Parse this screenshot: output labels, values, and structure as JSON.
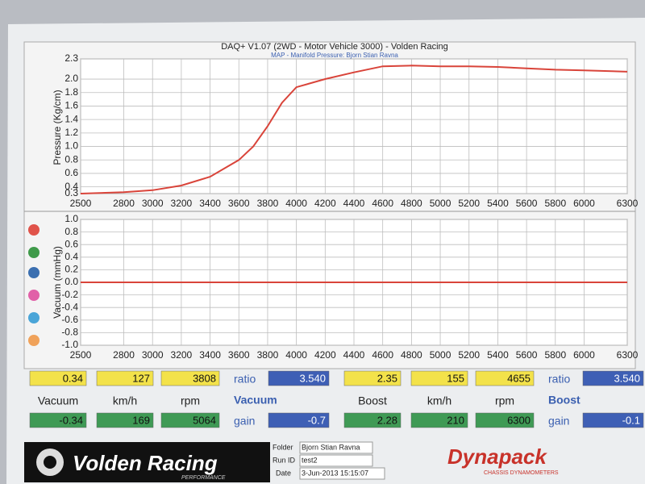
{
  "chart_data": [
    {
      "type": "line",
      "title": "DAQ+ V1.07 (2WD - Motor Vehicle 3000) - Volden Racing",
      "subtitle": "MAP - Manifold Pressure: Bjorn Stian Ravna",
      "y_label": "Pressure (Kg/cm)",
      "x": [
        2500,
        2800,
        3000,
        3200,
        3400,
        3600,
        3700,
        3800,
        3900,
        4000,
        4200,
        4400,
        4600,
        4800,
        5000,
        5200,
        5400,
        5600,
        5800,
        6000,
        6300
      ],
      "values": [
        0.3,
        0.32,
        0.35,
        0.42,
        0.55,
        0.8,
        1.0,
        1.3,
        1.65,
        1.88,
        2.0,
        2.1,
        2.19,
        2.2,
        2.19,
        2.19,
        2.18,
        2.16,
        2.14,
        2.13,
        2.11
      ],
      "color": "#d9443a",
      "xlim": [
        2500,
        6300
      ],
      "xticks": [
        2500,
        2800,
        3000,
        3200,
        3400,
        3600,
        3800,
        4000,
        4200,
        4400,
        4600,
        4800,
        5000,
        5200,
        5400,
        5600,
        5800,
        6000,
        6300
      ],
      "ylim": [
        0.3,
        2.3
      ],
      "yticks": [
        0.3,
        0.4,
        0.6,
        0.8,
        {
          "value": 1,
          "label": "1.0"
        },
        1.2,
        1.4,
        1.6,
        1.8,
        {
          "value": 2,
          "label": "2.0"
        },
        2.3
      ],
      "grid": true
    },
    {
      "type": "line",
      "y_label": "Vacuum (mmHg)",
      "x": [
        2500,
        6300
      ],
      "values": [
        0,
        0
      ],
      "color": "#d9443a",
      "xlim": [
        2500,
        6300
      ],
      "xticks": [
        2500,
        2800,
        3000,
        3200,
        3400,
        3600,
        3800,
        4000,
        4200,
        4400,
        4600,
        4800,
        5000,
        5200,
        5400,
        5600,
        5800,
        6000,
        6300
      ],
      "ylim": [
        -1,
        1
      ],
      "yticks": [
        {
          "value": -1,
          "label": "-1.0"
        },
        -0.8,
        -0.6,
        -0.4,
        -0.2,
        {
          "value": 0,
          "label": "0.0"
        },
        0.2,
        0.4,
        0.6,
        0.8,
        {
          "value": 1,
          "label": "1.0"
        }
      ],
      "grid": true
    }
  ],
  "readouts": [
    {
      "top": [
        "0.34",
        "127",
        "3808"
      ],
      "ratio_label": "ratio",
      "ratio": "3.540",
      "labels": [
        "Vacuum",
        "km/h",
        "rpm"
      ],
      "mode": "Vacuum",
      "bottom": [
        "-0.34",
        "169",
        "5064"
      ],
      "gain_label": "gain",
      "gain": "-0.7"
    },
    {
      "top": [
        "2.35",
        "155",
        "4655"
      ],
      "ratio_label": "ratio",
      "ratio": "3.540",
      "labels": [
        "Boost",
        "km/h",
        "rpm"
      ],
      "mode": "Boost",
      "bottom": [
        "2.28",
        "210",
        "6300"
      ],
      "gain_label": "gain",
      "gain": "-0.1"
    }
  ],
  "footer": {
    "logo": "Volden Racing",
    "logo_sub": "PERFORMANCE",
    "folder_label": "Folder",
    "folder": "Bjorn Stian Ravna",
    "run_label": "Run ID",
    "run": "test2",
    "date_label": "Date",
    "date": "3-Jun-2013 15:15:07",
    "brand": "Dynapack",
    "brand_sub": "CHASSIS DYNAMOMETERS"
  }
}
